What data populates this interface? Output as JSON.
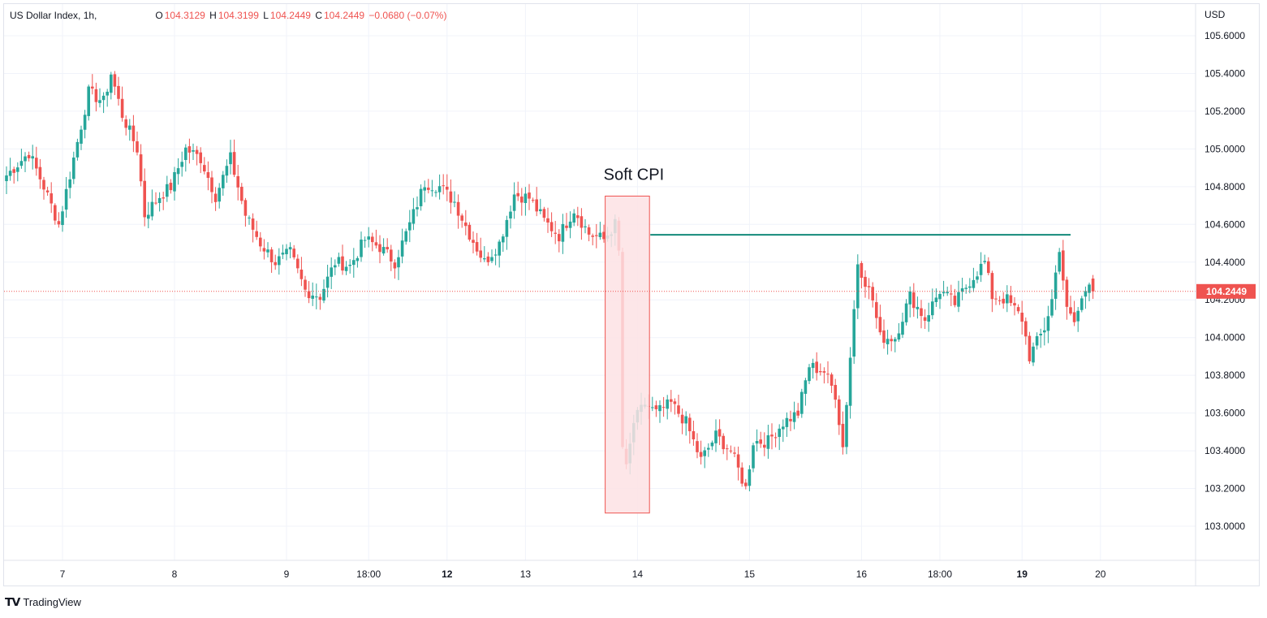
{
  "legend": {
    "symbol": "US Dollar Index, 1h,",
    "open_label": "O",
    "open": "104.3129",
    "high_label": "H",
    "high": "104.3199",
    "low_label": "L",
    "low": "104.2449",
    "close_label": "C",
    "close": "104.2449",
    "change": "−0.0680 (−0.07%)"
  },
  "brand": {
    "name": "TradingView",
    "logo_icon": "tradingview-logo-icon"
  },
  "colors": {
    "up": "#26a69a",
    "down": "#ef5350",
    "grid": "#f0f3fa",
    "resistance": "#138a7a",
    "highlight_fill": "#fde2e4",
    "highlight_stroke": "#ef5350"
  },
  "chart_data": {
    "type": "candlestick",
    "currency": "USD",
    "y_ticks": [
      "105.6000",
      "105.4000",
      "105.2000",
      "105.0000",
      "104.8000",
      "104.6000",
      "104.4000",
      "104.2000",
      "104.0000",
      "103.8000",
      "103.6000",
      "103.4000",
      "103.2000",
      "103.0000"
    ],
    "ylim": [
      102.84,
      105.66
    ],
    "x_ticks": [
      {
        "label": "7",
        "bold": false
      },
      {
        "label": "8",
        "bold": false
      },
      {
        "label": "9",
        "bold": false
      },
      {
        "label": "18:00",
        "bold": false
      },
      {
        "label": "12",
        "bold": true
      },
      {
        "label": "13",
        "bold": false
      },
      {
        "label": "14",
        "bold": false
      },
      {
        "label": "15",
        "bold": false
      },
      {
        "label": "16",
        "bold": false
      },
      {
        "label": "18:00",
        "bold": false
      },
      {
        "label": "19",
        "bold": true
      },
      {
        "label": "20",
        "bold": false
      }
    ],
    "last_price": "104.2449",
    "annotation": {
      "text": "Soft CPI",
      "box_high": 104.75,
      "box_low": 103.07
    },
    "resistance_level": 104.545,
    "anchors": [
      [
        0,
        104.86
      ],
      [
        6,
        104.98
      ],
      [
        10,
        104.8
      ],
      [
        14,
        104.6
      ],
      [
        18,
        104.95
      ],
      [
        22,
        105.3
      ],
      [
        26,
        105.25
      ],
      [
        28,
        105.4
      ],
      [
        31,
        105.18
      ],
      [
        35,
        105.0
      ],
      [
        37,
        104.65
      ],
      [
        41,
        104.75
      ],
      [
        44,
        104.8
      ],
      [
        48,
        105.0
      ],
      [
        52,
        104.95
      ],
      [
        56,
        104.75
      ],
      [
        60,
        104.95
      ],
      [
        64,
        104.65
      ],
      [
        68,
        104.5
      ],
      [
        72,
        104.4
      ],
      [
        76,
        104.45
      ],
      [
        80,
        104.25
      ],
      [
        84,
        104.22
      ],
      [
        88,
        104.4
      ],
      [
        92,
        104.38
      ],
      [
        96,
        104.52
      ],
      [
        100,
        104.48
      ],
      [
        104,
        104.4
      ],
      [
        108,
        104.6
      ],
      [
        112,
        104.82
      ],
      [
        116,
        104.8
      ],
      [
        120,
        104.72
      ],
      [
        124,
        104.55
      ],
      [
        128,
        104.4
      ],
      [
        132,
        104.5
      ],
      [
        136,
        104.76
      ],
      [
        140,
        104.74
      ],
      [
        144,
        104.62
      ],
      [
        148,
        104.54
      ],
      [
        152,
        104.68
      ],
      [
        156,
        104.55
      ],
      [
        160,
        104.52
      ],
      [
        163,
        104.6
      ],
      [
        164,
        104.45
      ],
      [
        165,
        103.42
      ],
      [
        166,
        103.3
      ],
      [
        168,
        103.55
      ],
      [
        171,
        103.65
      ],
      [
        174,
        103.6
      ],
      [
        178,
        103.65
      ],
      [
        182,
        103.55
      ],
      [
        186,
        103.35
      ],
      [
        190,
        103.48
      ],
      [
        194,
        103.4
      ],
      [
        198,
        103.2
      ],
      [
        200,
        103.45
      ],
      [
        204,
        103.45
      ],
      [
        208,
        103.55
      ],
      [
        212,
        103.6
      ],
      [
        215,
        103.85
      ],
      [
        219,
        103.82
      ],
      [
        222,
        103.7
      ],
      [
        224,
        103.42
      ],
      [
        226,
        103.9
      ],
      [
        228,
        104.4
      ],
      [
        232,
        104.2
      ],
      [
        234,
        104.0
      ],
      [
        238,
        104.0
      ],
      [
        242,
        104.22
      ],
      [
        246,
        104.1
      ],
      [
        250,
        104.25
      ],
      [
        254,
        104.18
      ],
      [
        258,
        104.3
      ],
      [
        262,
        104.4
      ],
      [
        264,
        104.22
      ],
      [
        268,
        104.2
      ],
      [
        272,
        104.1
      ],
      [
        274,
        103.9
      ],
      [
        278,
        104.05
      ],
      [
        280,
        104.2
      ],
      [
        282,
        104.48
      ],
      [
        284,
        104.14
      ],
      [
        286,
        104.08
      ],
      [
        288,
        104.2
      ],
      [
        290,
        104.31
      ],
      [
        291,
        104.245
      ]
    ]
  }
}
